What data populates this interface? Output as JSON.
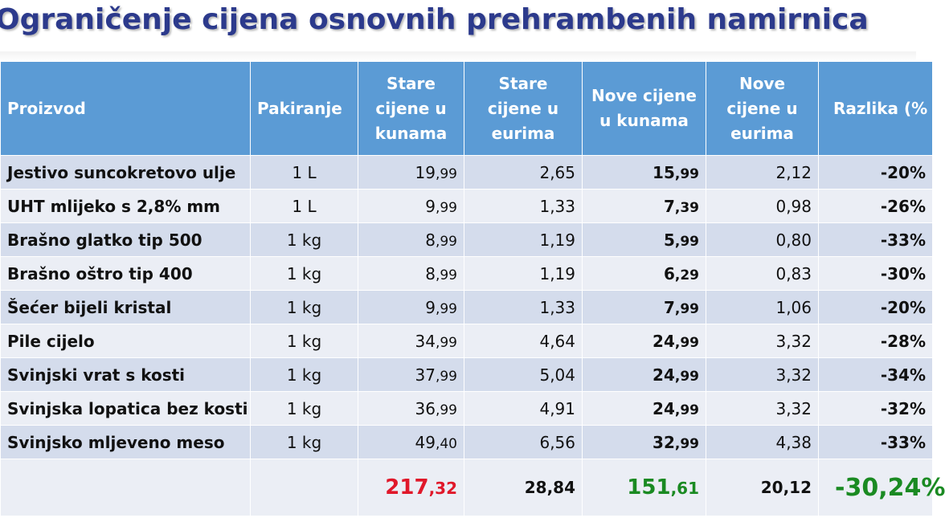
{
  "title": "Ograničenje cijena osnovnih prehrambenih namirnica",
  "headers": [
    "Proizvod",
    "Pakiranje",
    "Stare cijene u kunama",
    "Stare cijene u eurima",
    "Nove cijene u kunama",
    "Nove cijene u eurima",
    "Razlika (%"
  ],
  "rows": [
    {
      "name": "Jestivo suncokretovo ulje",
      "pack": "1 L",
      "old_kn_int": "19",
      "old_kn_dec": ",99",
      "old_eur": "2,65",
      "new_kn_int": "15",
      "new_kn_dec": ",99",
      "new_eur": "2,12",
      "diff": "-20%"
    },
    {
      "name": "UHT mlijeko s 2,8% mm",
      "pack": "1 L",
      "old_kn_int": "9",
      "old_kn_dec": ",99",
      "old_eur": "1,33",
      "new_kn_int": "7",
      "new_kn_dec": ",39",
      "new_eur": "0,98",
      "diff": "-26%"
    },
    {
      "name": "Brašno glatko tip 500",
      "pack": "1 kg",
      "old_kn_int": "8",
      "old_kn_dec": ",99",
      "old_eur": "1,19",
      "new_kn_int": "5",
      "new_kn_dec": ",99",
      "new_eur": "0,80",
      "diff": "-33%"
    },
    {
      "name": "Brašno oštro tip 400",
      "pack": "1 kg",
      "old_kn_int": "8",
      "old_kn_dec": ",99",
      "old_eur": "1,19",
      "new_kn_int": "6",
      "new_kn_dec": ",29",
      "new_eur": "0,83",
      "diff": "-30%"
    },
    {
      "name": "Šećer bijeli kristal",
      "pack": "1 kg",
      "old_kn_int": "9",
      "old_kn_dec": ",99",
      "old_eur": "1,33",
      "new_kn_int": "7",
      "new_kn_dec": ",99",
      "new_eur": "1,06",
      "diff": "-20%"
    },
    {
      "name": "Pile cijelo",
      "pack": "1 kg",
      "old_kn_int": "34",
      "old_kn_dec": ",99",
      "old_eur": "4,64",
      "new_kn_int": "24",
      "new_kn_dec": ",99",
      "new_eur": "3,32",
      "diff": "-28%"
    },
    {
      "name": "Svinjski vrat s kosti",
      "pack": "1 kg",
      "old_kn_int": "37",
      "old_kn_dec": ",99",
      "old_eur": "5,04",
      "new_kn_int": "24",
      "new_kn_dec": ",99",
      "new_eur": "3,32",
      "diff": "-34%"
    },
    {
      "name": "Svinjska lopatica bez kosti",
      "pack": "1 kg",
      "old_kn_int": "36",
      "old_kn_dec": ",99",
      "old_eur": "4,91",
      "new_kn_int": "24",
      "new_kn_dec": ",99",
      "new_eur": "3,32",
      "diff": "-32%"
    },
    {
      "name": "Svinjsko mljeveno meso",
      "pack": "1 kg",
      "old_kn_int": "49",
      "old_kn_dec": ",40",
      "old_eur": "6,56",
      "new_kn_int": "32",
      "new_kn_dec": ",99",
      "new_eur": "4,38",
      "diff": "-33%"
    }
  ],
  "totals": {
    "old_kn_int": "217",
    "old_kn_dec": ",32",
    "old_eur": "28,84",
    "new_kn_int": "151",
    "new_kn_dec": ",61",
    "new_eur": "20,12",
    "diff": "-30,24%"
  },
  "colors": {
    "header_bg": "#5b9bd5",
    "row_odd": "#d4dcec",
    "row_even": "#ebeef5",
    "old_price": "#e0182a",
    "new_price": "#1a8a22",
    "title": "#2c3a8c"
  }
}
